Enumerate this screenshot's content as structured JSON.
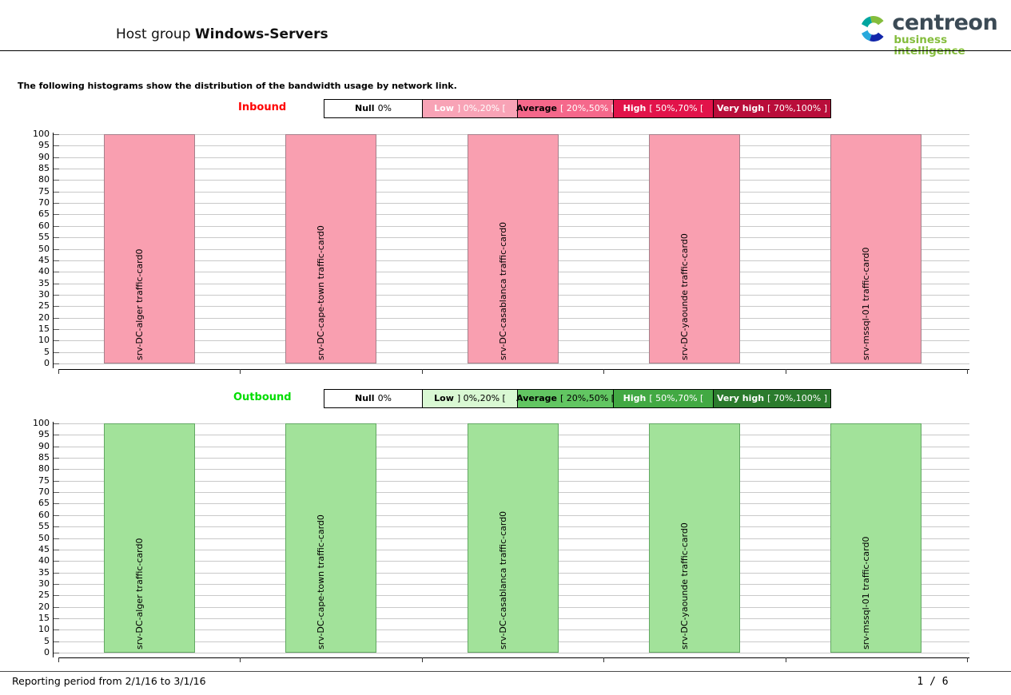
{
  "header": {
    "title_prefix": "Host group",
    "title_bold": "Windows-Servers"
  },
  "logo": {
    "name": "centreon",
    "subtitle": "business intelligence",
    "name_color": "#3b4a55",
    "subtitle_color": "#84bd3c"
  },
  "intro": {
    "text": "The following histograms show the distribution of the bandwidth usage by network link."
  },
  "chart_data": [
    {
      "type": "bar",
      "title": "Inbound",
      "title_color": "#ff0000",
      "categories": [
        "srv-DC-alger traffic-card0",
        "srv-DC-cape-town traffic-card0",
        "srv-DC-casablanca traffic-card0",
        "srv-DC-yaounde traffic-card0",
        "srv-mssql-01 traffic-card0"
      ],
      "values": [
        100,
        100,
        100,
        100,
        100
      ],
      "ylim": [
        0,
        100
      ],
      "ytick_step": 5,
      "grid": true,
      "bar_fill": "#f99fb0",
      "bar_border": "#a5808b",
      "legend": [
        {
          "label": "Null",
          "range": "0%",
          "bg": "#ffffff",
          "label_color": "#000000",
          "range_color": "#000000"
        },
        {
          "label": "Low",
          "range": "] 0%,20% [",
          "bg": "#f8a3b6",
          "label_color": "#ffffff",
          "range_color": "#ffffff"
        },
        {
          "label": "Average",
          "range": "[ 20%,50% [",
          "bg": "#f5688b",
          "label_color": "#000000",
          "range_color": "#ffffff"
        },
        {
          "label": "High",
          "range": "[ 50%,70% [",
          "bg": "#e2134a",
          "label_color": "#ffffff",
          "range_color": "#ffffff"
        },
        {
          "label": "Very high",
          "range": "[ 70%,100% ]",
          "bg": "#b90d3a",
          "label_color": "#ffffff",
          "range_color": "#ffffff"
        }
      ]
    },
    {
      "type": "bar",
      "title": "Outbound",
      "title_color": "#00dd00",
      "categories": [
        "srv-DC-alger traffic-card0",
        "srv-DC-cape-town traffic-card0",
        "srv-DC-casablanca traffic-card0",
        "srv-DC-yaounde traffic-card0",
        "srv-mssql-01 traffic-card0"
      ],
      "values": [
        100,
        100,
        100,
        100,
        100
      ],
      "ylim": [
        0,
        100
      ],
      "ytick_step": 5,
      "grid": true,
      "bar_fill": "#a2e29a",
      "bar_border": "#62a862",
      "legend": [
        {
          "label": "Null",
          "range": "0%",
          "bg": "#ffffff",
          "label_color": "#000000",
          "range_color": "#000000"
        },
        {
          "label": "Low",
          "range": "] 0%,20% [",
          "bg": "#d9f8d3",
          "label_color": "#000000",
          "range_color": "#000000"
        },
        {
          "label": "Average",
          "range": "[ 20%,50% [",
          "bg": "#62c662",
          "label_color": "#000000",
          "range_color": "#000000"
        },
        {
          "label": "High",
          "range": "[ 50%,70% [",
          "bg": "#42a943",
          "label_color": "#ffffff",
          "range_color": "#ffffff"
        },
        {
          "label": "Very high",
          "range": "[ 70%,100% ]",
          "bg": "#2b7b2d",
          "label_color": "#ffffff",
          "range_color": "#ffffff"
        }
      ]
    }
  ],
  "footer": {
    "period": "Reporting period from 2/1/16 to 3/1/16",
    "page": "1 / 6"
  }
}
